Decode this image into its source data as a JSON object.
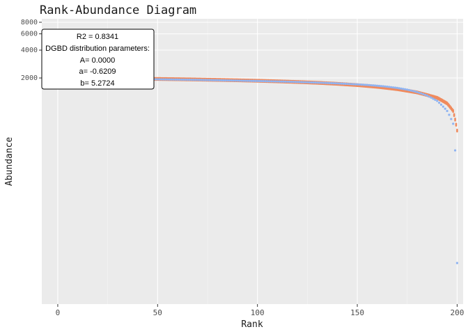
{
  "chart_data": {
    "type": "scatter",
    "title": "Rank-Abundance Diagram",
    "xlabel": "Rank",
    "ylabel": "Abundance",
    "xlim": [
      -8,
      203
    ],
    "x_ticks": [
      0,
      50,
      100,
      150,
      200
    ],
    "x_tick_labels": [
      "0",
      "50",
      "100",
      "150",
      "200"
    ],
    "ylim": [
      0,
      8000
    ],
    "y_ticks": [
      2000,
      4000,
      6000,
      8000
    ],
    "y_tick_labels": [
      "2000",
      "4000",
      "6000",
      "8000"
    ],
    "grid": true,
    "observed_color": "#8fb4f2",
    "fitted_color": "#f08a5d",
    "observed": {
      "x": [
        1,
        10,
        20,
        30,
        40,
        50,
        60,
        70,
        80,
        90,
        100,
        110,
        120,
        130,
        140,
        150,
        155,
        160,
        165,
        170,
        175,
        180,
        185,
        190,
        195,
        198,
        200
      ],
      "y": [
        1993,
        1983,
        1972,
        1960,
        1948,
        1935,
        1921,
        1907,
        1891,
        1874,
        1855,
        1834,
        1810,
        1782,
        1748,
        1705,
        1680,
        1648,
        1610,
        1560,
        1495,
        1408,
        1290,
        1130,
        880,
        640,
        20
      ]
    },
    "fitted": {
      "x": [
        1,
        10,
        20,
        30,
        40,
        50,
        60,
        70,
        80,
        90,
        100,
        110,
        120,
        130,
        140,
        150,
        160,
        170,
        180,
        190,
        195,
        198,
        200
      ],
      "y": [
        2000,
        1993,
        1984,
        1975,
        1964,
        1952,
        1939,
        1924,
        1907,
        1888,
        1866,
        1840,
        1810,
        1774,
        1730,
        1675,
        1605,
        1515,
        1395,
        1220,
        1060,
        880,
        540
      ]
    },
    "legend": {
      "placement": "top-left",
      "lines": [
        "R2 =  0.8341",
        "DGBD distribution parameters:",
        "A= 0.0000",
        "a= -0.6209",
        "b= 5.2724"
      ]
    }
  }
}
